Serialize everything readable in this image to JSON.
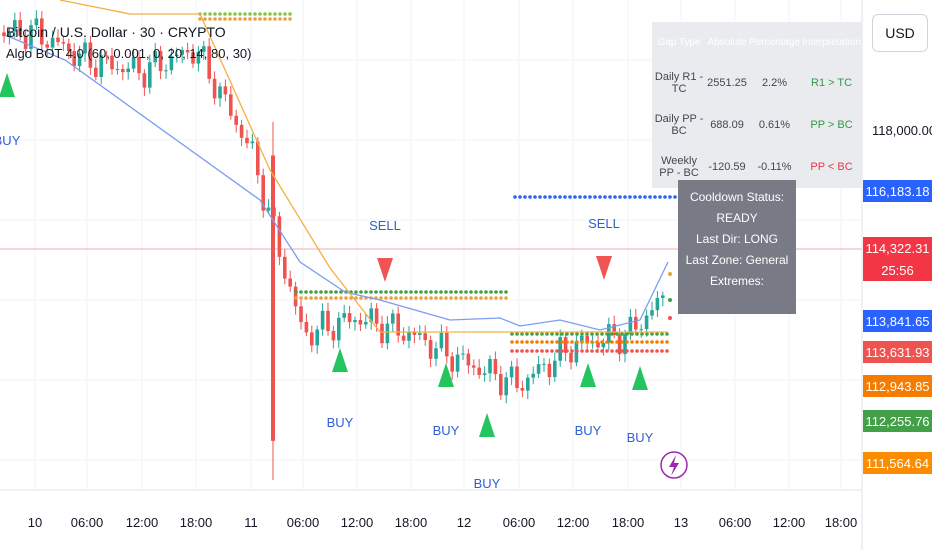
{
  "header": {
    "symbol_title": "Bitcoin / U.S. Dollar · 30 · CRYPTO",
    "indicator_line": "Algo BOT 4.0 (60, 0.001, 0, 20, 14, 80, 30)"
  },
  "currency_button": "USD",
  "info_table": {
    "headers": [
      "Gap Type",
      "Absolute",
      "Percentage",
      "Interpretation"
    ],
    "rows": [
      {
        "label": "Daily R1 - TC",
        "absolute": "2551.25",
        "percentage": "2.2%",
        "interpretation": "R1 > TC",
        "color": "#2e9b47"
      },
      {
        "label": "Daily PP - BC",
        "absolute": "688.09",
        "percentage": "0.61%",
        "interpretation": "PP > BC",
        "color": "#2e9b47"
      },
      {
        "label": "Weekly PP - BC",
        "absolute": "-120.59",
        "percentage": "-0.11%",
        "interpretation": "PP < BC",
        "color": "#e53945"
      }
    ]
  },
  "status_box": {
    "lines": [
      "Cooldown Status: READY",
      "Last Dir: LONG",
      "Last Zone: General",
      "Extremes:"
    ]
  },
  "price_scale": {
    "labels": [
      "118,000.00"
    ],
    "tags": [
      {
        "text": "116,183.18",
        "color": "#2962ff"
      },
      {
        "text": "114,322.31",
        "color": "#f23645"
      },
      {
        "text": "25:56",
        "color": "#f23645"
      },
      {
        "text": "113,841.65",
        "color": "#2962ff"
      },
      {
        "text": "113,631.93",
        "color": "#ef5350"
      },
      {
        "text": "112,943.85",
        "color": "#f57c00"
      },
      {
        "text": "112,255.76",
        "color": "#43a047"
      },
      {
        "text": "111,564.64",
        "color": "#fb8c00"
      }
    ]
  },
  "time_axis": [
    "10",
    "06:00",
    "12:00",
    "18:00",
    "11",
    "06:00",
    "12:00",
    "18:00",
    "12",
    "06:00",
    "12:00",
    "18:00",
    "13",
    "06:00",
    "12:00",
    "18:00"
  ],
  "signals": [
    {
      "type": "BUY",
      "label": "BUY"
    },
    {
      "type": "SELL",
      "label": "SELL"
    },
    {
      "type": "BUY",
      "label": "BUY"
    },
    {
      "type": "BUY",
      "label": "BUY"
    },
    {
      "type": "BUY",
      "label": "BUY"
    },
    {
      "type": "SELL",
      "label": "SELL"
    },
    {
      "type": "BUY",
      "label": "BUY"
    },
    {
      "type": "BUY",
      "label": "BUY"
    }
  ],
  "colors": {
    "up": "#26a69a",
    "down": "#ef5350",
    "buy": "#22c55e",
    "sell": "#f05454",
    "label_blue": "#2f5fd0"
  },
  "chart_data": {
    "type": "candlestick",
    "x": [
      "10",
      "06:00",
      "12:00",
      "18:00",
      "11",
      "06:00",
      "12:00",
      "18:00",
      "12",
      "06:00",
      "12:00",
      "18:00",
      "13"
    ],
    "series": [
      {
        "values": [
          119000,
          118500,
          118300,
          118700,
          116900,
          113600,
          113900,
          113600,
          113100,
          112700,
          113400,
          113600,
          114322.31
        ]
      }
    ],
    "ylim": [
      111000,
      119400
    ]
  }
}
